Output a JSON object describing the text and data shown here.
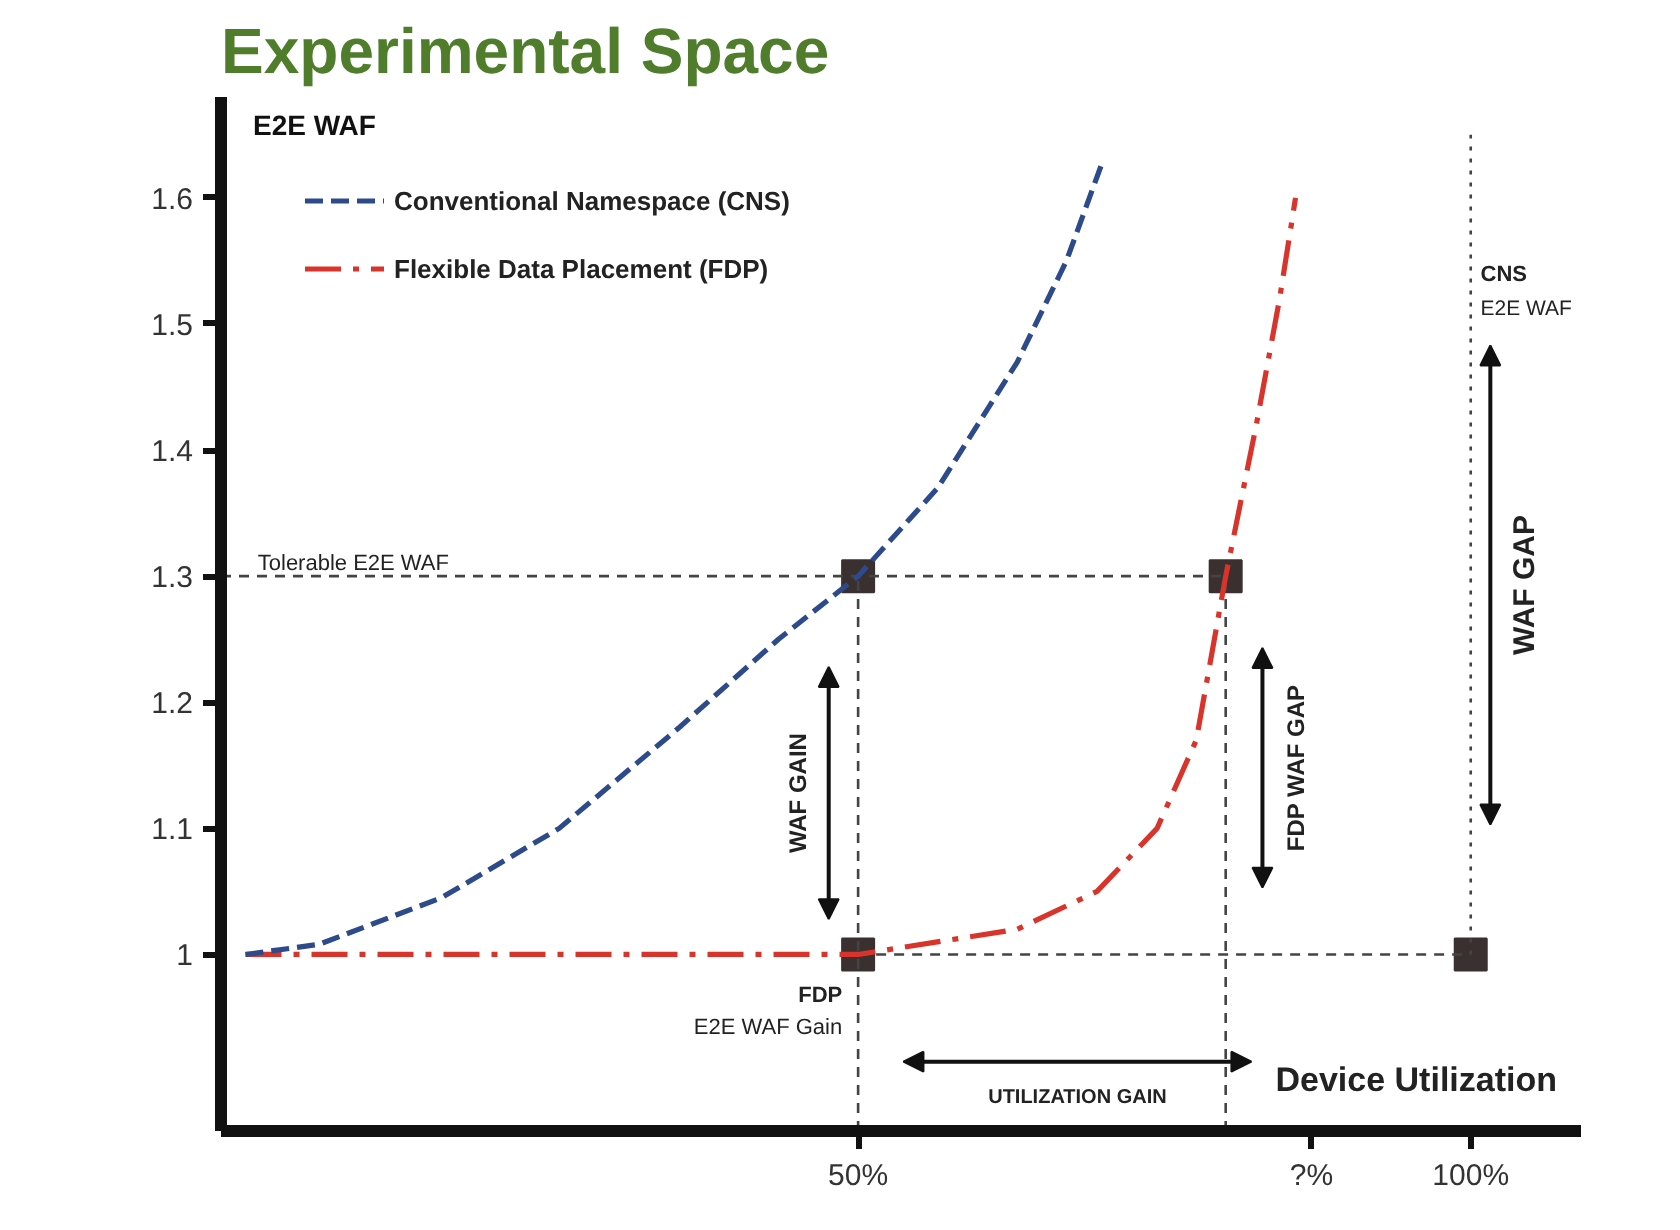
{
  "chart_data": {
    "type": "line",
    "title": "Experimental Space",
    "xlabel": "Device Utilization",
    "ylabel": "E2E WAF",
    "xlim": [
      -2,
      109
    ],
    "ylim": [
      0.86,
      1.68
    ],
    "xticks": [
      {
        "value": 50,
        "label": "50%"
      },
      {
        "value": 87,
        "label": "?%"
      },
      {
        "value": 100,
        "label": "100%"
      }
    ],
    "yticks": [
      1.0,
      1.1,
      1.2,
      1.3,
      1.4,
      1.5,
      1.6
    ],
    "series": [
      {
        "name": "Conventional Namespace (CNS)",
        "color": "#2d4a8a",
        "line_style": "dashed",
        "x": [
          0,
          6,
          16,
          25.6,
          35.4,
          43.5,
          50,
          56.5,
          63,
          67,
          70
        ],
        "values": [
          1.0,
          1.008,
          1.045,
          1.1,
          1.18,
          1.25,
          1.3,
          1.37,
          1.47,
          1.55,
          1.63
        ]
      },
      {
        "name": "Flexible Data Placement (FDP)",
        "color": "#d9342b",
        "line_style": "dashdot",
        "x": [
          0,
          50,
          63,
          69.5,
          74.4,
          77.6,
          80,
          82.5,
          84.4,
          85.7
        ],
        "values": [
          1.0,
          1.0,
          1.02,
          1.05,
          1.1,
          1.17,
          1.3,
          1.42,
          1.52,
          1.6
        ]
      },
      {
        "color": "#444444",
        "line_style": "dashed",
        "x": [
          -2,
          80
        ],
        "values": [
          1.3,
          1.3
        ]
      },
      {
        "color": "#444444",
        "line_style": "dashed",
        "x": [
          50,
          100
        ],
        "values": [
          1.0,
          1.0
        ]
      },
      {
        "color": "#444444",
        "line_style": "dashed",
        "x": [
          50,
          50
        ],
        "values": [
          0.86,
          1.3
        ]
      },
      {
        "color": "#444444",
        "line_style": "dashed",
        "x": [
          80,
          80
        ],
        "values": [
          0.86,
          1.3
        ]
      },
      {
        "color": "#444444",
        "line_style": "dotted",
        "x": [
          100,
          100
        ],
        "values": [
          1.0,
          1.65
        ]
      },
      {
        "type": "scatter",
        "marker": "square",
        "color": "#3a3030",
        "x": [
          50,
          80,
          50,
          100
        ],
        "values": [
          1.3,
          1.3,
          1.0,
          1.0
        ]
      }
    ],
    "annotations": [
      {
        "text": "Tolerable E2E WAF",
        "x": 1,
        "y": 1.3
      },
      "CNS",
      "E2E WAF",
      "WAF GAIN",
      "FDP",
      "E2E WAF Gain",
      "FDP WAF GAP",
      "WAF GAP",
      "UTILIZATION GAIN"
    ],
    "legend": "top left",
    "grid": false
  }
}
